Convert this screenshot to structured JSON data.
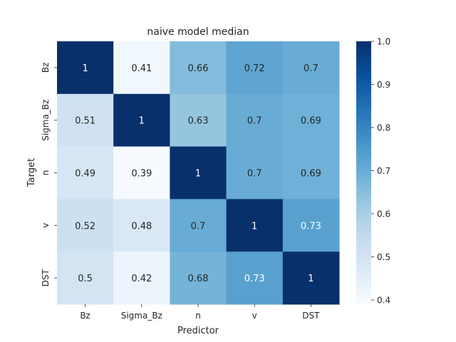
{
  "chart_data": {
    "type": "heatmap",
    "title": "naive model median",
    "xlabel": "Predictor",
    "ylabel": "Target",
    "x_categories": [
      "Bz",
      "Sigma_Bz",
      "n",
      "v",
      "DST"
    ],
    "y_categories": [
      "Bz",
      "Sigma_Bz",
      "n",
      "v",
      "DST"
    ],
    "values": [
      [
        1,
        0.41,
        0.66,
        0.72,
        0.7
      ],
      [
        0.51,
        1,
        0.63,
        0.7,
        0.69
      ],
      [
        0.49,
        0.39,
        1,
        0.7,
        0.69
      ],
      [
        0.52,
        0.48,
        0.7,
        1,
        0.73
      ],
      [
        0.5,
        0.42,
        0.68,
        0.73,
        1
      ]
    ],
    "colormap": "Blues",
    "colorbar": {
      "min": 0.39,
      "max": 1.0,
      "ticks": [
        0.4,
        0.5,
        0.6,
        0.7,
        0.8,
        0.9,
        1.0
      ],
      "tick_labels": [
        "0.4",
        "0.5",
        "0.6",
        "0.7",
        "0.8",
        "0.9",
        "1.0"
      ]
    }
  }
}
